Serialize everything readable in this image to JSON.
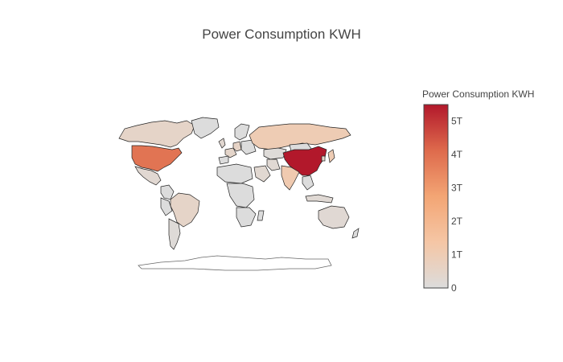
{
  "title": "Power Consumption KWH",
  "colorbar": {
    "title": "Power Consumption KWH",
    "range": [
      0,
      5.5
    ],
    "unit": "T",
    "ticks": [
      {
        "value": 0,
        "label": "0"
      },
      {
        "value": 1,
        "label": "1T"
      },
      {
        "value": 2,
        "label": "2T"
      },
      {
        "value": 3,
        "label": "3T"
      },
      {
        "value": 4,
        "label": "4T"
      },
      {
        "value": 5,
        "label": "5T"
      }
    ],
    "colorscale": [
      "#dcdcdc",
      "#f5c6a5",
      "#f3a574",
      "#de6a4c",
      "#b2182b"
    ]
  },
  "chart_data": {
    "type": "choropleth",
    "projection": "natural earth",
    "z_unit": "trillion kWh",
    "zmin": 0,
    "zmax": 5.5,
    "locations": [
      {
        "name": "China",
        "value": 5.5
      },
      {
        "name": "United States",
        "value": 3.9
      },
      {
        "name": "Russia",
        "value": 1.0
      },
      {
        "name": "India",
        "value": 1.1
      },
      {
        "name": "Japan",
        "value": 1.0
      },
      {
        "name": "Canada",
        "value": 0.5
      },
      {
        "name": "Germany",
        "value": 0.55
      },
      {
        "name": "Brazil",
        "value": 0.5
      },
      {
        "name": "France",
        "value": 0.45
      },
      {
        "name": "South Korea",
        "value": 0.5
      },
      {
        "name": "United Kingdom",
        "value": 0.3
      },
      {
        "name": "Australia",
        "value": 0.23
      },
      {
        "name": "Saudi Arabia",
        "value": 0.28
      },
      {
        "name": "Iran",
        "value": 0.23
      },
      {
        "name": "Mexico",
        "value": 0.25
      },
      {
        "name": "Indonesia",
        "value": 0.2
      },
      {
        "name": "Kazakhstan",
        "value": 0.09
      },
      {
        "name": "Argentina",
        "value": 0.12
      }
    ]
  }
}
